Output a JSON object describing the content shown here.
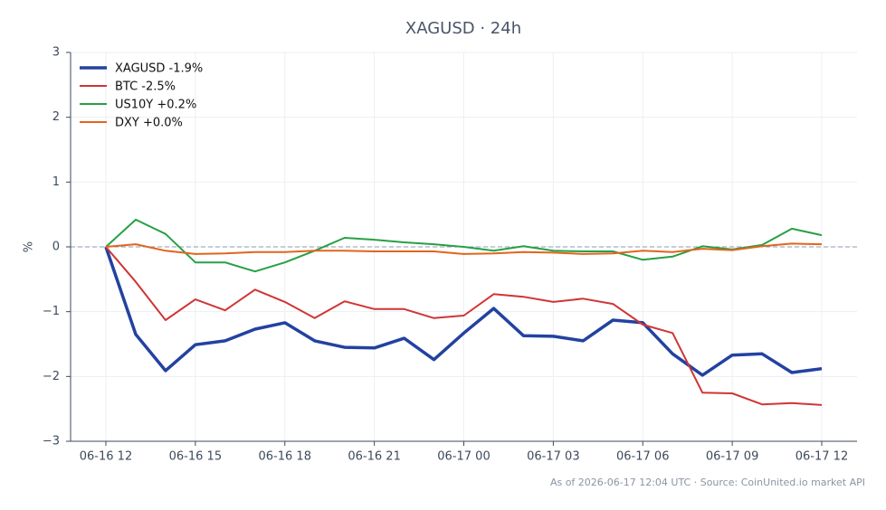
{
  "chart_data": {
    "type": "line",
    "title": "XAGUSD · 24h",
    "y_label": "%",
    "footnote": "As of 2026-06-17 12:04 UTC · Source: CoinUnited.io market API",
    "categories": [
      "06-16 12",
      null,
      null,
      "06-16 15",
      null,
      null,
      "06-16 18",
      null,
      null,
      "06-16 21",
      null,
      null,
      "06-17 00",
      null,
      null,
      "06-17 03",
      null,
      null,
      "06-17 06",
      null,
      null,
      "06-17 09",
      null,
      null,
      "06-17 12"
    ],
    "series": [
      {
        "name": "XAGUSD -1.9%",
        "color": "#2342a0",
        "linewidth": 3.5,
        "values": [
          0,
          -1.35,
          -1.91,
          -1.51,
          -1.45,
          -1.27,
          -1.17,
          -1.45,
          -1.55,
          -1.56,
          -1.41,
          -1.74,
          -1.33,
          -0.95,
          -1.37,
          -1.38,
          -1.45,
          -1.13,
          -1.17,
          -1.65,
          -1.98,
          -1.67,
          -1.65,
          -1.94,
          -1.88
        ]
      },
      {
        "name": "BTC -2.5%",
        "color": "#d03535",
        "linewidth": 2,
        "values": [
          0,
          -0.54,
          -1.13,
          -0.81,
          -0.98,
          -0.66,
          -0.85,
          -1.1,
          -0.84,
          -0.96,
          -0.96,
          -1.1,
          -1.06,
          -0.73,
          -0.77,
          -0.85,
          -0.8,
          -0.88,
          -1.2,
          -1.33,
          -2.25,
          -2.26,
          -2.43,
          -2.41,
          -2.44
        ]
      },
      {
        "name": "US10Y +0.2%",
        "color": "#27a045",
        "linewidth": 2,
        "values": [
          0,
          0.42,
          0.2,
          -0.24,
          -0.24,
          -0.38,
          -0.24,
          -0.06,
          0.14,
          0.11,
          0.07,
          0.04,
          0,
          -0.06,
          0.01,
          -0.06,
          -0.07,
          -0.07,
          -0.2,
          -0.15,
          0.01,
          -0.04,
          0.03,
          0.28,
          0.18
        ]
      },
      {
        "name": "DXY +0.0%",
        "color": "#e0651c",
        "linewidth": 2,
        "values": [
          0,
          0.04,
          -0.06,
          -0.11,
          -0.1,
          -0.08,
          -0.08,
          -0.06,
          -0.06,
          -0.07,
          -0.07,
          -0.07,
          -0.11,
          -0.1,
          -0.08,
          -0.09,
          -0.11,
          -0.1,
          -0.06,
          -0.08,
          -0.03,
          -0.05,
          0.01,
          0.05,
          0.04
        ]
      }
    ],
    "ylim": [
      -3,
      3
    ],
    "yticks": [
      {
        "value": -3,
        "label": "−3"
      },
      {
        "value": -2,
        "label": "−2"
      },
      {
        "value": -1,
        "label": "−1"
      },
      0,
      1,
      2,
      3
    ],
    "reference_line": 0,
    "grid": true,
    "legend": "upper left"
  }
}
